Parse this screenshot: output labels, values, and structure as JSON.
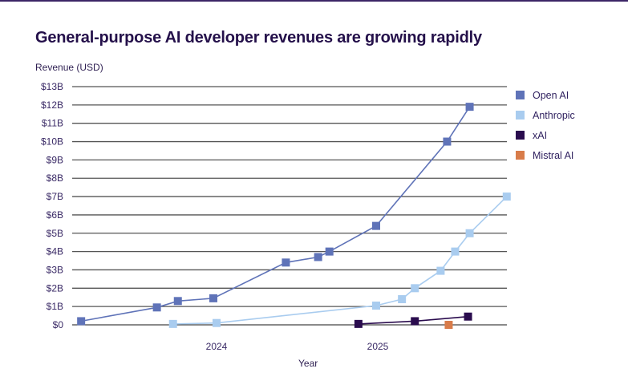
{
  "chart_data": {
    "type": "line",
    "title": "General-purpose AI developer revenues are growing rapidly",
    "xlabel": "Year",
    "ylabel": "Revenue (USD)",
    "ylim": [
      0,
      13
    ],
    "xlim": [
      2023.16,
      2025.81
    ],
    "yticks": [
      {
        "value": 0,
        "label": "$0"
      },
      {
        "value": 1,
        "label": "$1B"
      },
      {
        "value": 2,
        "label": "$2B"
      },
      {
        "value": 3,
        "label": "$3B"
      },
      {
        "value": 4,
        "label": "$4B"
      },
      {
        "value": 5,
        "label": "$5B"
      },
      {
        "value": 6,
        "label": "$6B"
      },
      {
        "value": 7,
        "label": "$7B"
      },
      {
        "value": 8,
        "label": "$8B"
      },
      {
        "value": 9,
        "label": "$9B"
      },
      {
        "value": 10,
        "label": "$10B"
      },
      {
        "value": 11,
        "label": "$11B"
      },
      {
        "value": 12,
        "label": "$12B"
      },
      {
        "value": 13,
        "label": "$13B"
      }
    ],
    "xticks": [
      {
        "value": 2024,
        "label": "2024"
      },
      {
        "value": 2025,
        "label": "2025"
      }
    ],
    "grid": true,
    "legend_position": "right",
    "series": [
      {
        "name": "Open AI",
        "color": "#5f73b8",
        "points": [
          [
            2023.16,
            0.2
          ],
          [
            2023.63,
            0.95
          ],
          [
            2023.76,
            1.3
          ],
          [
            2023.98,
            1.45
          ],
          [
            2024.43,
            3.4
          ],
          [
            2024.63,
            3.7
          ],
          [
            2024.7,
            4.0
          ],
          [
            2024.99,
            5.4
          ],
          [
            2025.43,
            10.0
          ],
          [
            2025.57,
            11.9
          ]
        ]
      },
      {
        "name": "Anthropic",
        "color": "#a9ccef",
        "points": [
          [
            2023.73,
            0.05
          ],
          [
            2024.0,
            0.1
          ],
          [
            2024.99,
            1.05
          ],
          [
            2025.15,
            1.4
          ],
          [
            2025.23,
            2.0
          ],
          [
            2025.39,
            2.95
          ],
          [
            2025.48,
            4.0
          ],
          [
            2025.57,
            5.0
          ],
          [
            2025.8,
            7.0
          ]
        ]
      },
      {
        "name": "xAI",
        "color": "#2a0c4e",
        "points": [
          [
            2024.88,
            0.05
          ],
          [
            2025.23,
            0.2
          ],
          [
            2025.56,
            0.45
          ]
        ]
      },
      {
        "name": "Mistral AI",
        "color": "#d87c4a",
        "points": [
          [
            2025.44,
            0.0
          ]
        ]
      }
    ]
  }
}
